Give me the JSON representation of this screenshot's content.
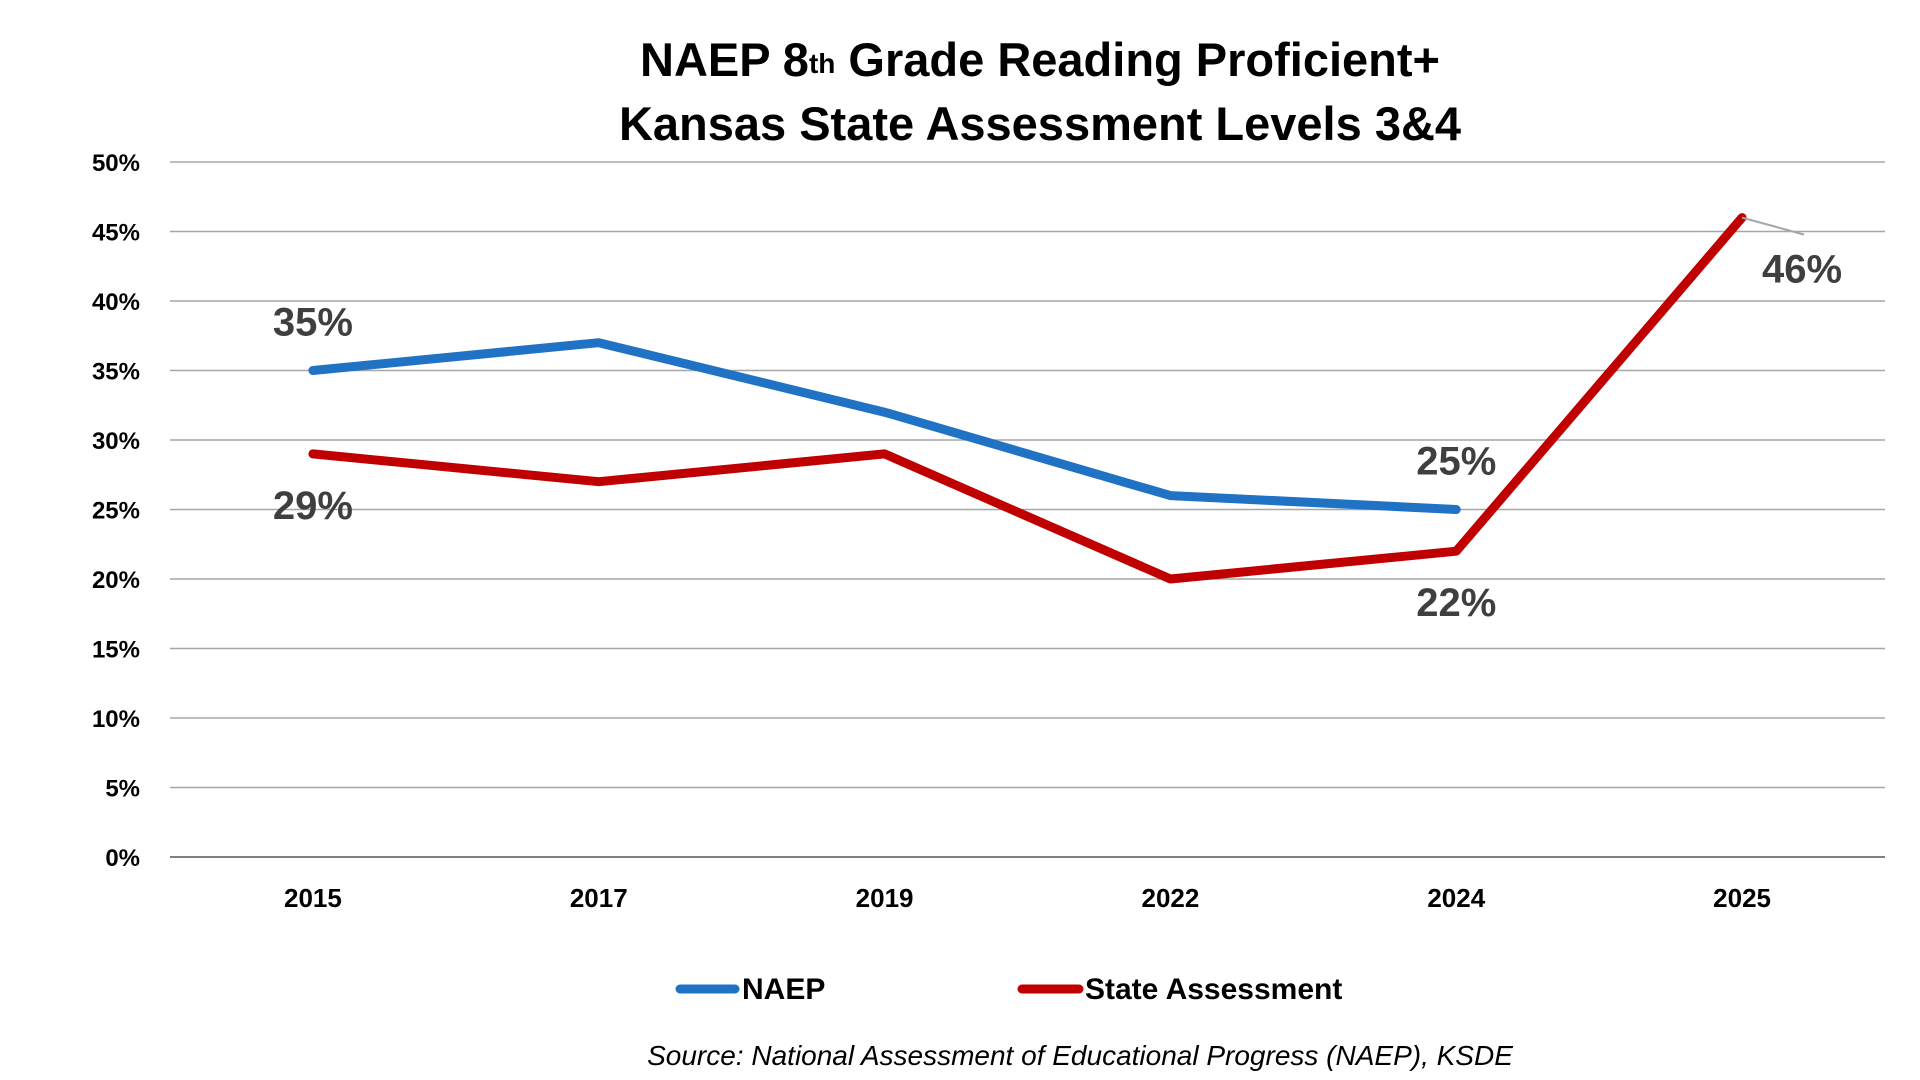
{
  "chart_data": {
    "type": "line",
    "title_line1_pre": "NAEP 8",
    "title_line1_sup": "th",
    "title_line1_post": " Grade Reading Proficient+",
    "title_line2": "Kansas State Assessment Levels 3&4",
    "categories": [
      "2015",
      "2017",
      "2019",
      "2022",
      "2024",
      "2025"
    ],
    "series": [
      {
        "name": "NAEP",
        "color": "#1f72c4",
        "values": [
          35,
          37,
          32,
          26,
          25,
          null
        ]
      },
      {
        "name": "State Assessment",
        "color": "#c00000",
        "values": [
          29,
          27,
          29,
          20,
          22,
          46
        ]
      }
    ],
    "ylim": [
      0,
      50
    ],
    "ytick_step": 5,
    "y_tick_labels": [
      "0%",
      "5%",
      "10%",
      "15%",
      "20%",
      "25%",
      "30%",
      "35%",
      "40%",
      "45%",
      "50%"
    ],
    "grid": true,
    "legend_position": "bottom",
    "data_labels": [
      {
        "series": 0,
        "index": 0,
        "text": "35%",
        "side": "above"
      },
      {
        "series": 0,
        "index": 4,
        "text": "25%",
        "side": "above"
      },
      {
        "series": 1,
        "index": 0,
        "text": "29%",
        "side": "below"
      },
      {
        "series": 1,
        "index": 4,
        "text": "22%",
        "side": "below"
      },
      {
        "series": 1,
        "index": 5,
        "text": "46%",
        "side": "right-below",
        "leader": true
      }
    ],
    "source": "Source: National Assessment of Educational Progress (NAEP), KSDE"
  }
}
